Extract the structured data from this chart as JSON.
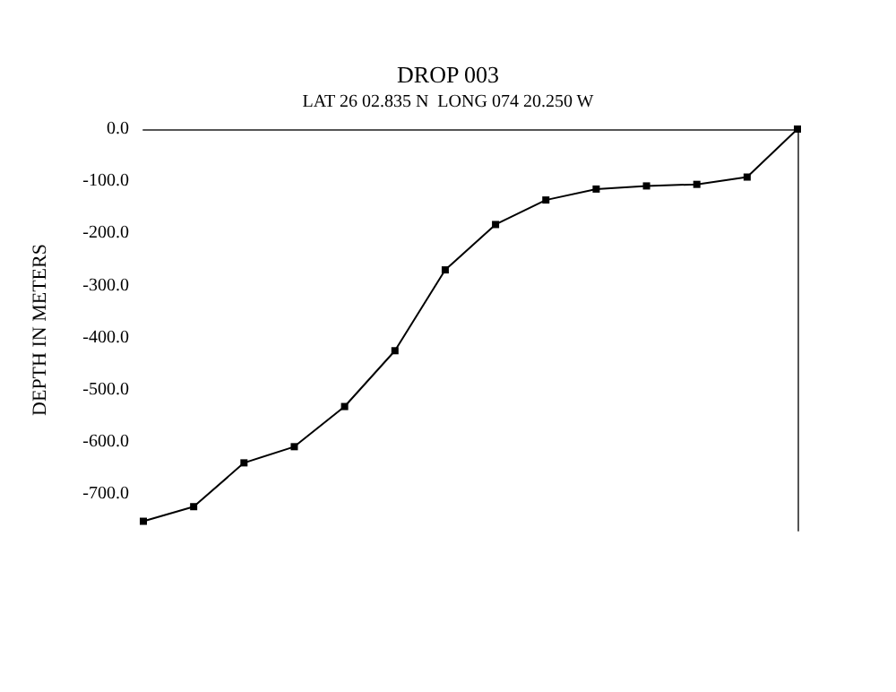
{
  "chart_data": {
    "type": "line",
    "title": "DROP 003",
    "subtitle": "LAT 26 02.835 N  LONG 074 20.250 W",
    "ylabel": "DEPTH IN METERS",
    "categories": [
      null,
      null,
      null,
      null,
      null,
      null,
      null,
      null,
      null,
      null,
      null,
      null,
      null,
      null
    ],
    "series": [
      {
        "color": "#000000",
        "values": [
          -752,
          -724,
          -640,
          -609,
          -532,
          -425,
          -270,
          -183,
          -136,
          -115,
          -109,
          -106,
          -92,
          0
        ]
      }
    ],
    "ylim": [
      -770,
      0
    ],
    "yticks": [
      {
        "value": 0,
        "label": "0.0"
      },
      {
        "value": -100,
        "label": "-100.0"
      },
      {
        "value": -200,
        "label": "-200.0"
      },
      {
        "value": -300,
        "label": "-300.0"
      },
      {
        "value": -400,
        "label": "-400.0"
      },
      {
        "value": -500,
        "label": "-500.0"
      },
      {
        "value": -600,
        "label": "-600.0"
      },
      {
        "value": -700,
        "label": "-700.0"
      }
    ],
    "tick_labels": "y",
    "grid": false,
    "marker": "square",
    "line_style": "solid"
  }
}
